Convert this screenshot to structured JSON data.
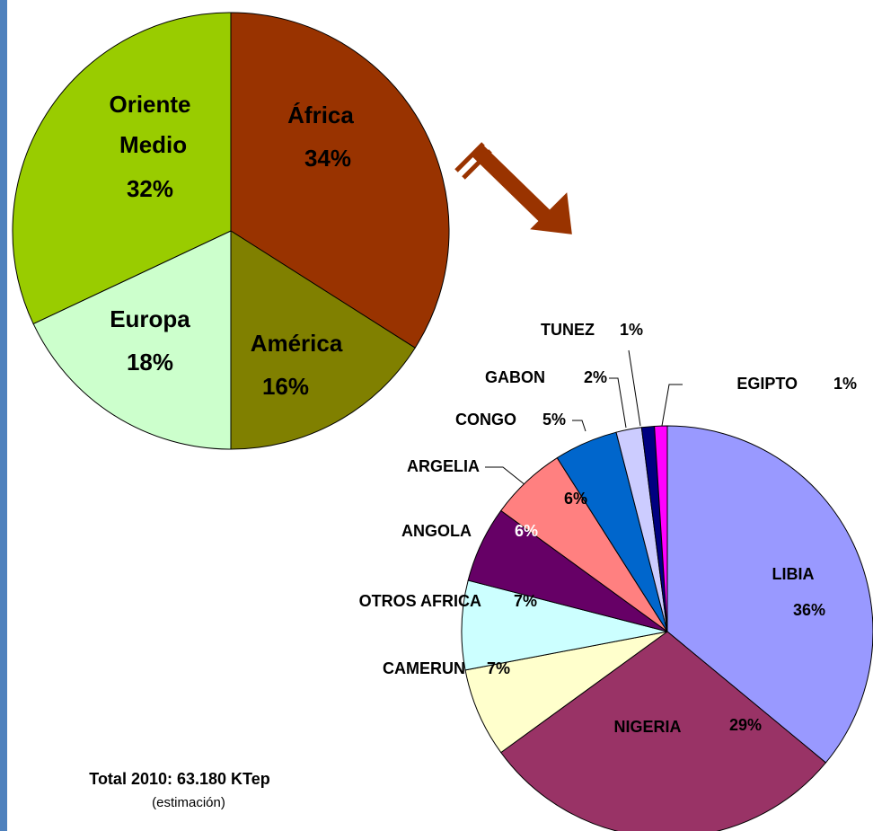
{
  "chart_data": [
    {
      "type": "pie",
      "categories": [
        "África",
        "América",
        "Europa",
        "Oriente Medio"
      ],
      "values": [
        34,
        16,
        18,
        32
      ],
      "value_labels": [
        "34%",
        "16%",
        "18%",
        "32%"
      ],
      "colors": [
        "#993300",
        "#808000",
        "#ccffcc",
        "#99cc00"
      ]
    },
    {
      "type": "pie",
      "categories": [
        "LIBIA",
        "NIGERIA",
        "CAMERUN",
        "OTROS AFRICA",
        "ANGOLA",
        "ARGELIA",
        "CONGO",
        "GABON",
        "TUNEZ",
        "EGIPTO"
      ],
      "values": [
        36,
        29,
        7,
        7,
        6,
        6,
        5,
        2,
        1,
        1
      ],
      "value_labels": [
        "36%",
        "29%",
        "7%",
        "7%",
        "6%",
        "6%",
        "5%",
        "2%",
        "1%",
        "1%"
      ],
      "colors": [
        "#9999ff",
        "#993366",
        "#ffffcc",
        "#ccffff",
        "#660066",
        "#ff8080",
        "#0066cc",
        "#ccccff",
        "#000080",
        "#ff00ff"
      ]
    }
  ],
  "notes": {
    "total": "Total 2010: 63.180 KTep",
    "detail": "(estimación)"
  }
}
